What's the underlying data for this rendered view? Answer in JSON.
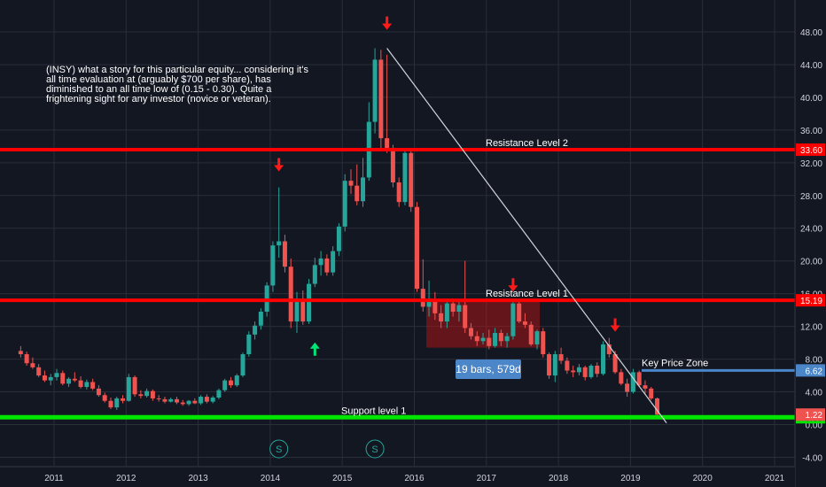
{
  "chart_data": {
    "type": "candlestick",
    "ticker": "INSY",
    "note": "(INSY) what a story for this particular equity... considering it's all time evaluation at (arguably $700 per share), has diminished to an all time low of (0.15 - 0.30). Quite a frightening sight for any investor (novice or veteran).",
    "ylim": [
      -4,
      50
    ],
    "y_ticks": [
      "48.00",
      "44.00",
      "40.00",
      "36.00",
      "32.00",
      "28.00",
      "24.00",
      "20.00",
      "16.00",
      "12.00",
      "8.00",
      "4.00",
      "0.00",
      "-4.00"
    ],
    "x_ticks": [
      "2011",
      "2012",
      "2013",
      "2014",
      "2015",
      "2016",
      "2017",
      "2018",
      "2019",
      "2020",
      "2021"
    ],
    "horizontal_levels": [
      {
        "label": "Resistance Level 2",
        "price": 33.6,
        "price_label": "33.60",
        "color": "#ff0000"
      },
      {
        "label": "Resistance Level 1",
        "price": 15.19,
        "price_label": "15.19",
        "color": "#ff0000"
      },
      {
        "label": "Support level 1",
        "price": 0.89,
        "price_label": "0.89",
        "color": "#00e600"
      },
      {
        "label": "Key Price Zone",
        "price": 6.62,
        "price_label": "6.62",
        "color": "#4a86c8"
      }
    ],
    "last_price": {
      "value": 1.22,
      "label": "1.22",
      "color": "#ef5350"
    },
    "trendline": {
      "from": [
        "2015-08",
        46.0
      ],
      "to": [
        "2019-07",
        0.2
      ]
    },
    "range_box": {
      "from": "2016-03",
      "to": "2017-09",
      "low": 9.4,
      "high": 15.0,
      "label": "19 bars, 579d"
    },
    "markers": [
      {
        "type": "arrow-down",
        "date": "2014-02",
        "price": 31.5,
        "color": "#ff1a1a"
      },
      {
        "type": "arrow-up",
        "date": "2014-08",
        "price": 9.5,
        "color": "#00e676"
      },
      {
        "type": "arrow-down",
        "date": "2015-08",
        "price": 48.8,
        "color": "#ff1a1a"
      },
      {
        "type": "arrow-down",
        "date": "2017-05",
        "price": 16.8,
        "color": "#ff1a1a"
      },
      {
        "type": "arrow-down",
        "date": "2018-10",
        "price": 11.9,
        "color": "#ff1a1a"
      }
    ],
    "split_markers": [
      {
        "date": "2014-02",
        "label": "S"
      },
      {
        "date": "2015-06",
        "label": "S"
      }
    ],
    "colors": {
      "up": "#26a69a",
      "down": "#ef5350",
      "background": "#131722",
      "grid": "#2a2e39",
      "axis_text": "#d1d4dc"
    },
    "candles": [
      [
        "2010-07",
        9.0,
        9.6,
        8.2,
        8.6
      ],
      [
        "2010-08",
        8.6,
        8.9,
        7.2,
        7.5
      ],
      [
        "2010-09",
        7.5,
        8.2,
        6.8,
        7.0
      ],
      [
        "2010-10",
        7.0,
        7.4,
        5.8,
        6.0
      ],
      [
        "2010-11",
        6.0,
        6.6,
        5.2,
        5.4
      ],
      [
        "2010-12",
        5.4,
        6.2,
        4.8,
        5.8
      ],
      [
        "2011-01",
        5.8,
        6.8,
        5.4,
        6.3
      ],
      [
        "2011-02",
        6.3,
        6.6,
        4.8,
        5.0
      ],
      [
        "2011-03",
        5.0,
        5.8,
        4.6,
        5.6
      ],
      [
        "2011-04",
        5.6,
        6.4,
        5.2,
        5.4
      ],
      [
        "2011-05",
        5.4,
        5.9,
        4.4,
        4.6
      ],
      [
        "2011-06",
        4.6,
        5.5,
        4.3,
        5.2
      ],
      [
        "2011-07",
        5.2,
        5.6,
        4.2,
        4.4
      ],
      [
        "2011-08",
        4.4,
        4.8,
        3.4,
        3.6
      ],
      [
        "2011-09",
        3.6,
        3.9,
        2.7,
        2.9
      ],
      [
        "2011-10",
        2.9,
        3.3,
        1.9,
        2.1
      ],
      [
        "2011-11",
        2.1,
        3.4,
        1.8,
        3.2
      ],
      [
        "2011-12",
        3.2,
        3.6,
        2.6,
        2.9
      ],
      [
        "2012-01",
        2.9,
        6.2,
        2.8,
        5.8
      ],
      [
        "2012-02",
        5.8,
        6.0,
        3.4,
        3.7
      ],
      [
        "2012-03",
        3.7,
        4.2,
        3.2,
        3.5
      ],
      [
        "2012-04",
        3.5,
        4.4,
        3.3,
        4.1
      ],
      [
        "2012-05",
        4.1,
        4.3,
        2.9,
        3.2
      ],
      [
        "2012-06",
        3.2,
        3.6,
        2.8,
        3.1
      ],
      [
        "2012-07",
        3.1,
        3.4,
        2.6,
        2.8
      ],
      [
        "2012-08",
        2.8,
        3.3,
        2.7,
        3.1
      ],
      [
        "2012-09",
        3.1,
        3.4,
        2.5,
        2.7
      ],
      [
        "2012-10",
        2.7,
        3.0,
        2.3,
        2.5
      ],
      [
        "2012-11",
        2.5,
        3.0,
        2.3,
        2.9
      ],
      [
        "2012-12",
        2.9,
        3.2,
        2.5,
        2.6
      ],
      [
        "2013-01",
        2.6,
        3.6,
        2.4,
        3.4
      ],
      [
        "2013-02",
        3.4,
        3.7,
        2.6,
        2.8
      ],
      [
        "2013-03",
        2.8,
        3.5,
        2.6,
        3.3
      ],
      [
        "2013-04",
        3.3,
        4.4,
        3.1,
        4.2
      ],
      [
        "2013-05",
        4.2,
        5.6,
        4.0,
        5.4
      ],
      [
        "2013-06",
        5.4,
        5.8,
        4.5,
        4.8
      ],
      [
        "2013-07",
        4.8,
        6.2,
        4.6,
        6.0
      ],
      [
        "2013-08",
        6.0,
        8.8,
        5.8,
        8.6
      ],
      [
        "2013-09",
        8.6,
        11.4,
        8.3,
        11.0
      ],
      [
        "2013-10",
        11.0,
        12.6,
        10.4,
        12.1
      ],
      [
        "2013-11",
        12.1,
        14.2,
        11.6,
        13.8
      ],
      [
        "2013-12",
        13.8,
        17.4,
        13.2,
        17.0
      ],
      [
        "2014-01",
        17.0,
        22.4,
        16.2,
        21.9
      ],
      [
        "2014-02",
        21.9,
        29.0,
        20.4,
        22.4
      ],
      [
        "2014-03",
        22.4,
        23.2,
        18.6,
        19.3
      ],
      [
        "2014-04",
        19.3,
        20.3,
        11.8,
        12.6
      ],
      [
        "2014-05",
        12.6,
        16.2,
        11.2,
        15.4
      ],
      [
        "2014-06",
        15.4,
        16.4,
        12.2,
        12.6
      ],
      [
        "2014-07",
        12.6,
        17.8,
        12.3,
        17.2
      ],
      [
        "2014-08",
        17.2,
        20.4,
        16.8,
        19.5
      ],
      [
        "2014-09",
        19.5,
        21.2,
        18.2,
        20.3
      ],
      [
        "2014-10",
        20.3,
        20.8,
        18.2,
        18.6
      ],
      [
        "2014-11",
        18.6,
        21.8,
        18.2,
        21.2
      ],
      [
        "2014-12",
        21.2,
        24.6,
        20.6,
        24.2
      ],
      [
        "2015-01",
        24.2,
        30.6,
        23.6,
        29.8
      ],
      [
        "2015-02",
        29.8,
        31.2,
        28.2,
        29.2
      ],
      [
        "2015-03",
        29.2,
        31.8,
        26.8,
        27.3
      ],
      [
        "2015-04",
        27.3,
        32.6,
        26.6,
        30.2
      ],
      [
        "2015-05",
        30.2,
        39.4,
        29.8,
        37.0
      ],
      [
        "2015-06",
        37.0,
        46.0,
        35.6,
        44.6
      ],
      [
        "2015-07",
        44.6,
        45.8,
        33.8,
        35.0
      ],
      [
        "2015-08",
        35.0,
        45.2,
        33.2,
        33.6
      ],
      [
        "2015-09",
        33.6,
        34.2,
        29.0,
        29.6
      ],
      [
        "2015-10",
        29.6,
        30.2,
        26.6,
        27.2
      ],
      [
        "2015-11",
        27.2,
        33.8,
        26.8,
        33.2
      ],
      [
        "2015-12",
        33.2,
        33.4,
        26.0,
        26.6
      ],
      [
        "2016-01",
        26.6,
        27.2,
        16.2,
        16.6
      ],
      [
        "2016-02",
        16.6,
        20.2,
        13.8,
        14.4
      ],
      [
        "2016-03",
        14.4,
        17.6,
        13.2,
        15.2
      ],
      [
        "2016-04",
        15.2,
        16.2,
        12.8,
        13.6
      ],
      [
        "2016-05",
        13.6,
        14.6,
        11.8,
        12.6
      ],
      [
        "2016-06",
        12.6,
        15.4,
        11.8,
        14.8
      ],
      [
        "2016-07",
        14.8,
        15.4,
        13.2,
        13.8
      ],
      [
        "2016-08",
        13.8,
        15.2,
        12.6,
        14.6
      ],
      [
        "2016-09",
        14.6,
        20.0,
        11.2,
        11.8
      ],
      [
        "2016-10",
        11.8,
        12.4,
        10.4,
        10.8
      ],
      [
        "2016-11",
        10.8,
        11.4,
        9.6,
        10.2
      ],
      [
        "2016-12",
        10.2,
        11.2,
        9.8,
        10.6
      ],
      [
        "2017-01",
        10.6,
        11.6,
        9.2,
        9.6
      ],
      [
        "2017-02",
        9.6,
        11.8,
        9.4,
        11.2
      ],
      [
        "2017-03",
        11.2,
        11.6,
        9.6,
        10.2
      ],
      [
        "2017-04",
        10.2,
        11.2,
        9.4,
        10.8
      ],
      [
        "2017-05",
        10.8,
        15.2,
        10.4,
        14.8
      ],
      [
        "2017-06",
        14.8,
        15.0,
        12.4,
        12.6
      ],
      [
        "2017-07",
        12.6,
        13.6,
        11.8,
        12.2
      ],
      [
        "2017-08",
        12.2,
        12.6,
        9.6,
        9.8
      ],
      [
        "2017-09",
        9.8,
        11.6,
        9.2,
        11.4
      ],
      [
        "2017-10",
        11.4,
        11.8,
        8.2,
        8.6
      ],
      [
        "2017-11",
        8.6,
        8.8,
        5.6,
        6.0
      ],
      [
        "2017-12",
        6.0,
        9.0,
        5.2,
        8.6
      ],
      [
        "2018-01",
        8.6,
        9.4,
        7.4,
        7.8
      ],
      [
        "2018-02",
        7.8,
        8.2,
        6.2,
        6.6
      ],
      [
        "2018-03",
        6.6,
        7.2,
        5.8,
        6.4
      ],
      [
        "2018-04",
        6.4,
        7.4,
        6.0,
        7.0
      ],
      [
        "2018-05",
        7.0,
        7.2,
        5.4,
        5.8
      ],
      [
        "2018-06",
        5.8,
        7.4,
        5.6,
        7.2
      ],
      [
        "2018-07",
        7.2,
        7.6,
        5.8,
        6.2
      ],
      [
        "2018-08",
        6.2,
        10.2,
        6.0,
        9.8
      ],
      [
        "2018-09",
        9.8,
        10.6,
        8.2,
        8.6
      ],
      [
        "2018-10",
        8.6,
        9.0,
        6.2,
        6.4
      ],
      [
        "2018-11",
        6.4,
        6.8,
        4.8,
        5.0
      ],
      [
        "2018-12",
        5.0,
        5.6,
        3.4,
        4.0
      ],
      [
        "2019-01",
        4.0,
        6.8,
        3.8,
        6.4
      ],
      [
        "2019-02",
        6.4,
        6.6,
        4.6,
        4.8
      ],
      [
        "2019-03",
        4.8,
        5.4,
        3.8,
        4.4
      ],
      [
        "2019-04",
        4.4,
        4.6,
        3.0,
        3.2
      ],
      [
        "2019-05",
        3.2,
        3.3,
        1.1,
        1.22
      ]
    ]
  }
}
